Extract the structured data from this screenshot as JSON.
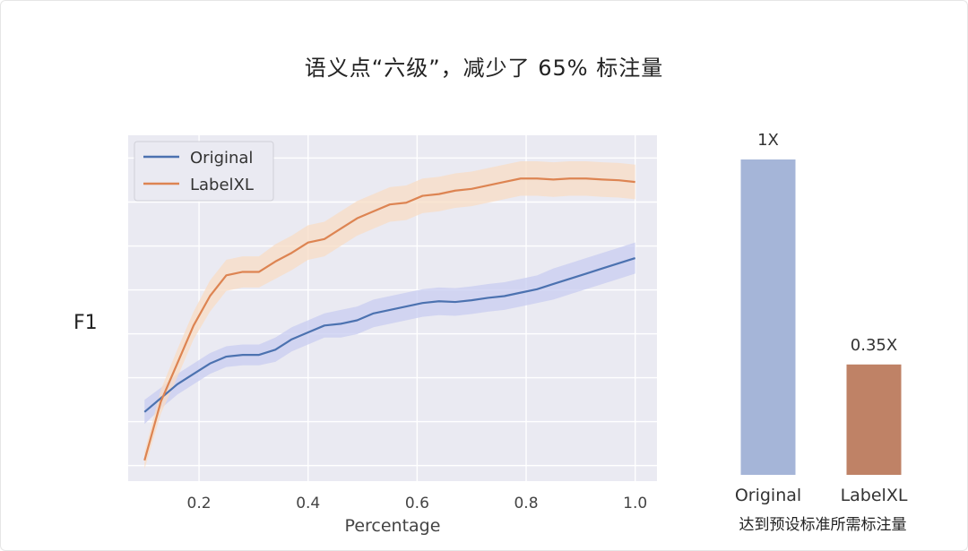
{
  "title": "语义点“六级”，减少了 65% 标注量",
  "colors": {
    "original": "#4c72b0",
    "labelxl": "#dd8452",
    "original_band": "#c8ccf0",
    "labelxl_band": "#f8dcc4",
    "plot_bg": "#eaeaf2",
    "bar_original": "#a5b5d8",
    "bar_labelxl": "#bf8266"
  },
  "chart_data": [
    {
      "type": "line",
      "title": "",
      "xlabel": "Percentage",
      "ylabel": "F1",
      "xlim": [
        0.07,
        1.04
      ],
      "ylim": [
        0.0,
        1.0
      ],
      "xticks": [
        "0.2",
        "0.4",
        "0.6",
        "0.8",
        "1.0"
      ],
      "grid": true,
      "legend": "top-left",
      "x": [
        0.1,
        0.13,
        0.16,
        0.19,
        0.22,
        0.25,
        0.28,
        0.31,
        0.34,
        0.37,
        0.4,
        0.43,
        0.46,
        0.49,
        0.52,
        0.55,
        0.58,
        0.61,
        0.64,
        0.67,
        0.7,
        0.73,
        0.76,
        0.79,
        0.82,
        0.85,
        0.88,
        0.91,
        0.94,
        0.97,
        1.0
      ],
      "series": [
        {
          "name": "Original",
          "values": [
            0.2,
            0.24,
            0.28,
            0.31,
            0.34,
            0.36,
            0.365,
            0.365,
            0.38,
            0.41,
            0.43,
            0.45,
            0.455,
            0.465,
            0.485,
            0.495,
            0.505,
            0.515,
            0.52,
            0.518,
            0.523,
            0.53,
            0.535,
            0.545,
            0.555,
            0.57,
            0.585,
            0.6,
            0.615,
            0.63,
            0.645
          ],
          "band": [
            0.035,
            0.03,
            0.03,
            0.03,
            0.03,
            0.03,
            0.03,
            0.03,
            0.035,
            0.035,
            0.035,
            0.035,
            0.04,
            0.04,
            0.04,
            0.04,
            0.04,
            0.04,
            0.04,
            0.04,
            0.04,
            0.04,
            0.04,
            0.04,
            0.04,
            0.045,
            0.045,
            0.045,
            0.045,
            0.045,
            0.045
          ]
        },
        {
          "name": "LabelXL",
          "values": [
            0.06,
            0.23,
            0.34,
            0.45,
            0.535,
            0.595,
            0.605,
            0.605,
            0.635,
            0.66,
            0.69,
            0.7,
            0.73,
            0.76,
            0.78,
            0.8,
            0.805,
            0.825,
            0.83,
            0.84,
            0.845,
            0.855,
            0.865,
            0.875,
            0.875,
            0.872,
            0.875,
            0.875,
            0.872,
            0.87,
            0.865
          ],
          "band": [
            0.025,
            0.035,
            0.04,
            0.04,
            0.045,
            0.045,
            0.045,
            0.045,
            0.05,
            0.05,
            0.05,
            0.05,
            0.05,
            0.05,
            0.05,
            0.05,
            0.05,
            0.05,
            0.05,
            0.05,
            0.05,
            0.05,
            0.05,
            0.05,
            0.05,
            0.05,
            0.05,
            0.05,
            0.05,
            0.05,
            0.05
          ]
        }
      ]
    },
    {
      "type": "bar",
      "title": "",
      "xlabel": "达到预设标准所需标注量",
      "categories": [
        "Original",
        "LabelXL"
      ],
      "values": [
        1.0,
        0.35
      ],
      "value_labels": [
        "1X",
        "0.35X"
      ],
      "ylim": [
        0,
        1.0
      ],
      "grid": false
    }
  ]
}
